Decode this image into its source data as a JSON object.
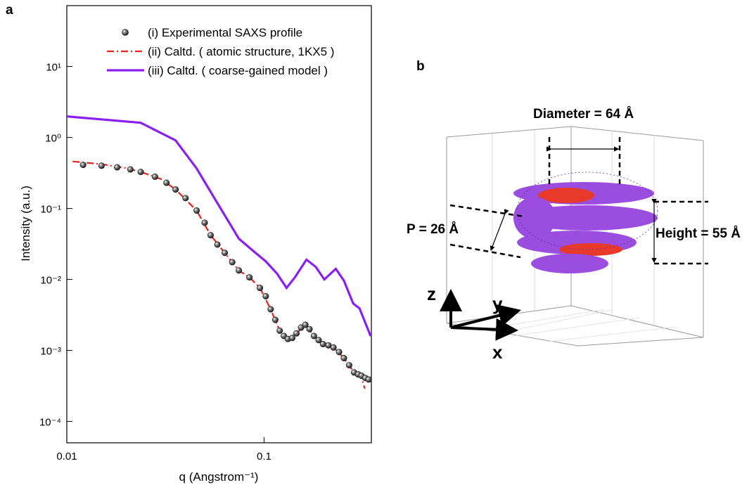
{
  "chart_data": {
    "type": "line",
    "panel_label": "a",
    "xlabel": "q (Angstrom⁻¹)",
    "ylabel": "Intensity (a.u.)",
    "log_x": true,
    "log_y": true,
    "xlim": [
      0.01,
      0.35
    ],
    "ylim": [
      5e-05,
      72
    ],
    "xticks": [
      0.01,
      0.1
    ],
    "yticks": [
      {
        "value": 0.0001,
        "label": "10⁻⁴"
      },
      {
        "value": 0.001,
        "label": "10⁻³"
      },
      {
        "value": 0.01,
        "label": "10⁻²"
      },
      {
        "value": 0.1,
        "label": "10⁻¹"
      },
      {
        "value": 1,
        "label": "10⁰"
      },
      {
        "value": 10,
        "label": "10¹"
      }
    ],
    "series": [
      {
        "name": "(i)  Experimental SAXS profile",
        "color": "#111111",
        "style": "markers",
        "x": [
          0.0121,
          0.015,
          0.018,
          0.021,
          0.0237,
          0.028,
          0.032,
          0.0356,
          0.04,
          0.0455,
          0.05,
          0.0536,
          0.058,
          0.0632,
          0.069,
          0.0745,
          0.0843,
          0.0953,
          0.102,
          0.108,
          0.114,
          0.12,
          0.126,
          0.132,
          0.139,
          0.146,
          0.154,
          0.162,
          0.17,
          0.179,
          0.189,
          0.199,
          0.212,
          0.225,
          0.24,
          0.254,
          0.27,
          0.286,
          0.3,
          0.312,
          0.326,
          0.339
        ],
        "values": [
          0.411,
          0.4,
          0.38,
          0.355,
          0.327,
          0.28,
          0.23,
          0.185,
          0.14,
          0.0935,
          0.063,
          0.042,
          0.031,
          0.0237,
          0.0175,
          0.0134,
          0.0107,
          0.0076,
          0.0058,
          0.0038,
          0.0027,
          0.0019,
          0.0016,
          0.00145,
          0.0015,
          0.00174,
          0.0021,
          0.0023,
          0.002,
          0.0016,
          0.0014,
          0.00123,
          0.00118,
          0.0011,
          0.00095,
          0.00078,
          0.00062,
          0.00049,
          0.00046,
          0.00044,
          0.00041,
          0.00039
        ]
      },
      {
        "name": "(ii)  Caltd. ( atomic structure, 1KX5 )",
        "color": "#e8211c",
        "style": "dashdot",
        "x": [
          0.0107,
          0.015,
          0.02,
          0.0237,
          0.03,
          0.0356,
          0.0455,
          0.0536,
          0.0632,
          0.0745,
          0.0843,
          0.0953,
          0.108,
          0.12,
          0.132,
          0.146,
          0.162,
          0.179,
          0.199,
          0.225,
          0.254,
          0.286,
          0.312,
          0.324
        ],
        "values": [
          0.46,
          0.42,
          0.37,
          0.327,
          0.26,
          0.185,
          0.0935,
          0.042,
          0.0237,
          0.0134,
          0.0107,
          0.0076,
          0.0038,
          0.0019,
          0.00145,
          0.00174,
          0.0023,
          0.0016,
          0.00123,
          0.0011,
          0.00078,
          0.00049,
          0.00042,
          0.00029
        ]
      },
      {
        "name": "(iii)  Caltd. ( coarse-gained model )",
        "color": "#8a1ff0",
        "style": "solid",
        "x": [
          0.01,
          0.0237,
          0.0356,
          0.0455,
          0.0582,
          0.0745,
          0.0877,
          0.102,
          0.1166,
          0.13,
          0.143,
          0.164,
          0.183,
          0.202,
          0.231,
          0.254,
          0.283,
          0.305,
          0.347
        ],
        "values": [
          1.98,
          1.61,
          0.91,
          0.367,
          0.117,
          0.0375,
          0.0255,
          0.018,
          0.012,
          0.0076,
          0.0106,
          0.019,
          0.015,
          0.01,
          0.0141,
          0.0096,
          0.0046,
          0.0039,
          0.00159
        ]
      }
    ]
  },
  "diagram": {
    "panel_label": "b",
    "diameter_label": "Diameter = 64 Å",
    "height_label": "Height = 55 Å",
    "pitch_label": "P = 26 Å",
    "axes": {
      "z": "z",
      "y": "y",
      "x": "x"
    }
  }
}
